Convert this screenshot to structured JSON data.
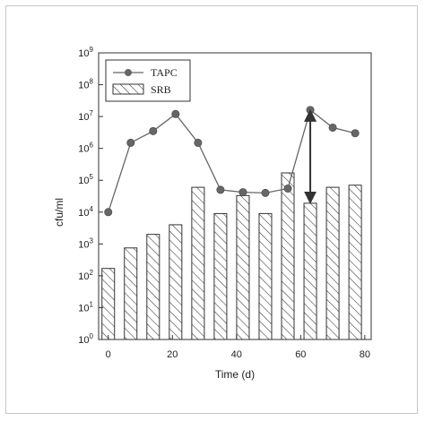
{
  "chart_data": {
    "type": "bar",
    "title": "",
    "xlabel": "Time (d)",
    "ylabel": "cfu/ml",
    "xlim": [
      -3,
      82
    ],
    "ylim_log10": [
      0,
      9
    ],
    "yscale": "log",
    "x_ticks": [
      0,
      20,
      40,
      60,
      80
    ],
    "x_tick_labels": [
      "0",
      "20",
      "40",
      "60",
      "80"
    ],
    "y_ticks": [
      {
        "base": "10",
        "exp": "0"
      },
      {
        "base": "10",
        "exp": "1"
      },
      {
        "base": "10",
        "exp": "2"
      },
      {
        "base": "10",
        "exp": "3"
      },
      {
        "base": "10",
        "exp": "4"
      },
      {
        "base": "10",
        "exp": "5"
      },
      {
        "base": "10",
        "exp": "6"
      },
      {
        "base": "10",
        "exp": "7"
      },
      {
        "base": "10",
        "exp": "8"
      },
      {
        "base": "10",
        "exp": "9"
      }
    ],
    "grid": false,
    "legend_position": "top-left",
    "series": [
      {
        "name": "TAPC",
        "kind": "line-markers",
        "color": "#666666",
        "x": [
          0,
          7,
          14,
          21,
          28,
          35,
          42,
          49,
          56,
          63,
          70,
          77
        ],
        "y": [
          10000,
          1500000,
          3500000,
          12000000,
          1500000,
          50000,
          42000,
          40000,
          55000,
          16000000,
          4500000,
          3000000
        ]
      },
      {
        "name": "SRB",
        "kind": "hatched-bars",
        "color": "#333333",
        "x": [
          0,
          7,
          14,
          21,
          28,
          35,
          42,
          49,
          56,
          63,
          70,
          77
        ],
        "y": [
          170,
          750,
          2000,
          4000,
          60000,
          9000,
          33000,
          9000,
          170000,
          19000,
          60000,
          70000
        ]
      }
    ],
    "annotations": [
      {
        "type": "double-arrow",
        "x": 63,
        "y_from": 19000,
        "y_to": 16000000
      }
    ]
  }
}
